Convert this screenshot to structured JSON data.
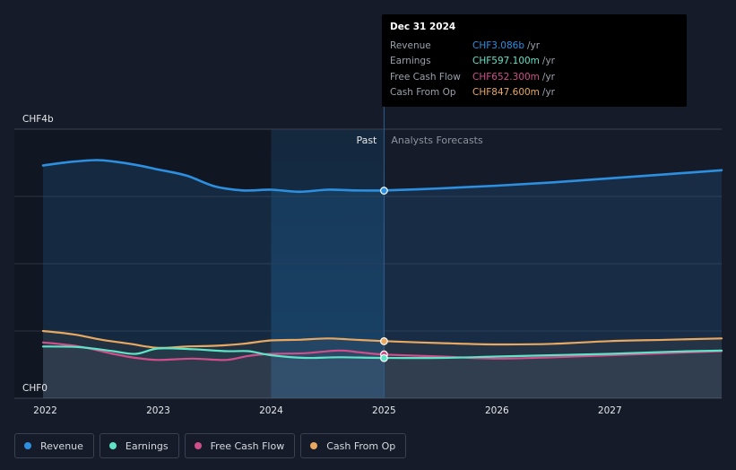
{
  "chart_data": {
    "type": "line",
    "y_top_label": "CHF4b",
    "y_bottom_label": "CHF0",
    "ylim": [
      0,
      4
    ],
    "xlim": [
      2021.98,
      2027.99
    ],
    "x_ticks": [
      2022,
      2023,
      2024,
      2025,
      2026,
      2027
    ],
    "x_tick_labels": [
      "2022",
      "2023",
      "2024",
      "2025",
      "2026",
      "2027"
    ],
    "divider_x": 2025,
    "shaded_start_x": 2024.0,
    "past_label": "Past",
    "forecast_label": "Analysts Forecasts",
    "series": [
      {
        "name": "Revenue",
        "color": "#2d8fe0",
        "x": [
          2021.98,
          2022.2,
          2022.45,
          2022.6,
          2022.8,
          2023.0,
          2023.25,
          2023.5,
          2023.75,
          2024.0,
          2024.25,
          2024.5,
          2024.75,
          2025.0,
          2025.5,
          2026.0,
          2026.5,
          2027.0,
          2027.5,
          2027.99
        ],
        "y": [
          3.46,
          3.51,
          3.54,
          3.52,
          3.47,
          3.4,
          3.31,
          3.15,
          3.09,
          3.1,
          3.07,
          3.1,
          3.09,
          3.09,
          3.12,
          3.16,
          3.21,
          3.27,
          3.33,
          3.39
        ]
      },
      {
        "name": "Earnings",
        "color": "#5fe3c7",
        "x": [
          2021.98,
          2022.3,
          2022.6,
          2022.8,
          2023.0,
          2023.3,
          2023.6,
          2023.8,
          2024.0,
          2024.3,
          2024.6,
          2025.0,
          2025.5,
          2026.0,
          2026.5,
          2027.0,
          2027.5,
          2027.99
        ],
        "y": [
          0.77,
          0.76,
          0.7,
          0.66,
          0.74,
          0.73,
          0.7,
          0.7,
          0.64,
          0.6,
          0.61,
          0.6,
          0.6,
          0.62,
          0.64,
          0.66,
          0.69,
          0.71
        ]
      },
      {
        "name": "Free Cash Flow",
        "color": "#d04f8a",
        "x": [
          2021.98,
          2022.3,
          2022.6,
          2022.8,
          2023.0,
          2023.3,
          2023.6,
          2023.8,
          2024.0,
          2024.3,
          2024.6,
          2024.8,
          2025.0,
          2025.5,
          2026.0,
          2026.5,
          2027.0,
          2027.5,
          2027.99
        ],
        "y": [
          0.83,
          0.77,
          0.66,
          0.6,
          0.57,
          0.59,
          0.57,
          0.63,
          0.66,
          0.67,
          0.71,
          0.68,
          0.65,
          0.62,
          0.59,
          0.61,
          0.64,
          0.67,
          0.7
        ]
      },
      {
        "name": "Cash From Op",
        "color": "#e8a860",
        "x": [
          2021.98,
          2022.25,
          2022.5,
          2022.75,
          2023.0,
          2023.25,
          2023.5,
          2023.75,
          2024.0,
          2024.25,
          2024.5,
          2024.75,
          2025.0,
          2025.5,
          2026.0,
          2026.5,
          2027.0,
          2027.5,
          2027.99
        ],
        "y": [
          1.0,
          0.95,
          0.87,
          0.81,
          0.75,
          0.77,
          0.78,
          0.81,
          0.86,
          0.87,
          0.89,
          0.87,
          0.85,
          0.82,
          0.8,
          0.81,
          0.85,
          0.87,
          0.89
        ]
      }
    ],
    "highlight_points": [
      {
        "series": "Revenue",
        "x": 2025,
        "y": 3.086
      },
      {
        "series": "Cash From Op",
        "x": 2025,
        "y": 0.8476
      },
      {
        "series": "Free Cash Flow",
        "x": 2025,
        "y": 0.6523
      },
      {
        "series": "Earnings",
        "x": 2025,
        "y": 0.5971
      }
    ]
  },
  "tooltip": {
    "date": "Dec 31 2024",
    "rows": [
      {
        "label": "Revenue",
        "value": "CHF3.086b",
        "unit": "/yr",
        "color": "#2d8fe0"
      },
      {
        "label": "Earnings",
        "value": "CHF597.100m",
        "unit": "/yr",
        "color": "#5fe3c7"
      },
      {
        "label": "Free Cash Flow",
        "value": "CHF652.300m",
        "unit": "/yr",
        "color": "#d04f8a"
      },
      {
        "label": "Cash From Op",
        "value": "CHF847.600m",
        "unit": "/yr",
        "color": "#e8a860"
      }
    ]
  },
  "legend": [
    {
      "label": "Revenue",
      "color": "#2d8fe0"
    },
    {
      "label": "Earnings",
      "color": "#5fe3c7"
    },
    {
      "label": "Free Cash Flow",
      "color": "#d04f8a"
    },
    {
      "label": "Cash From Op",
      "color": "#e8a860"
    }
  ]
}
